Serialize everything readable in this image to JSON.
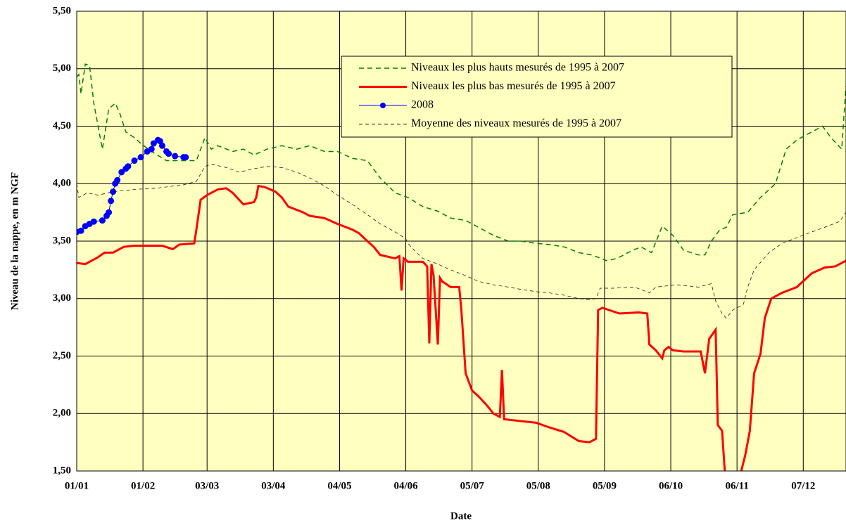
{
  "chart_data": {
    "type": "line",
    "x_label": "Date",
    "y_label": "Niveau de la nappe, en m NGF",
    "xlim": [
      0,
      360
    ],
    "xticks": [
      {
        "value": 0,
        "label": "01/01"
      },
      {
        "value": 31,
        "label": "01/02"
      },
      {
        "value": 61,
        "label": "03/03"
      },
      {
        "value": 92,
        "label": "03/04"
      },
      {
        "value": 123,
        "label": "04/05"
      },
      {
        "value": 154,
        "label": "04/06"
      },
      {
        "value": 185,
        "label": "05/07"
      },
      {
        "value": 216,
        "label": "05/08"
      },
      {
        "value": 247,
        "label": "05/09"
      },
      {
        "value": 278,
        "label": "06/10"
      },
      {
        "value": 309,
        "label": "06/11"
      },
      {
        "value": 340,
        "label": "07/12"
      }
    ],
    "ylim": [
      1.5,
      5.5
    ],
    "yticks": [
      {
        "value": 1.5,
        "label": "1,50"
      },
      {
        "value": 2,
        "label": "2,00"
      },
      {
        "value": 2.5,
        "label": "2,50"
      },
      {
        "value": 3,
        "label": "3,00"
      },
      {
        "value": 3.5,
        "label": "3,50"
      },
      {
        "value": 4,
        "label": "4,00"
      },
      {
        "value": 4.5,
        "label": "4,50"
      },
      {
        "value": 5,
        "label": "5,00"
      },
      {
        "value": 5.5,
        "label": "5,50"
      }
    ],
    "grid": true,
    "legend": "upper right",
    "series": [
      {
        "name": "Niveaux les plus hauts mesurés de 1995 à 2007",
        "color": "#008000",
        "style": "dashed",
        "x": [
          0,
          1,
          2,
          4,
          6,
          8,
          12,
          15,
          18,
          20,
          23,
          27,
          30,
          35,
          42,
          50,
          56,
          60,
          63,
          66,
          73,
          78,
          83,
          89,
          96,
          103,
          109,
          116,
          122,
          129,
          136,
          142,
          149,
          155,
          162,
          169,
          175,
          182,
          188,
          195,
          202,
          208,
          215,
          221,
          228,
          235,
          241,
          248,
          253,
          258,
          264,
          269,
          274,
          279,
          284,
          291,
          294,
          297,
          301,
          304,
          307,
          314,
          320,
          327,
          332,
          337,
          344,
          349,
          353,
          358,
          360
        ],
        "values": [
          4.93,
          4.95,
          4.78,
          5.04,
          5.03,
          4.7,
          4.3,
          4.65,
          4.7,
          4.62,
          4.45,
          4.4,
          4.35,
          4.28,
          4.2,
          4.2,
          4.2,
          4.4,
          4.3,
          4.33,
          4.28,
          4.3,
          4.25,
          4.3,
          4.33,
          4.3,
          4.33,
          4.28,
          4.28,
          4.22,
          4.2,
          4.05,
          3.92,
          3.88,
          3.8,
          3.76,
          3.7,
          3.68,
          3.62,
          3.55,
          3.5,
          3.5,
          3.48,
          3.47,
          3.45,
          3.4,
          3.38,
          3.33,
          3.35,
          3.4,
          3.45,
          3.4,
          3.63,
          3.55,
          3.42,
          3.38,
          3.38,
          3.5,
          3.6,
          3.62,
          3.73,
          3.75,
          3.88,
          4.0,
          4.3,
          4.38,
          4.45,
          4.5,
          4.4,
          4.3,
          4.85
        ]
      },
      {
        "name": "Niveaux les plus bas mesurés de 1995 à 2007",
        "color": "#ff0000",
        "style": "thick",
        "x": [
          0,
          4,
          7,
          10,
          13,
          17,
          22,
          27,
          33,
          40,
          45,
          48,
          55,
          56,
          58,
          61,
          66,
          70,
          73,
          78,
          83,
          84,
          85,
          88,
          93,
          96,
          99,
          106,
          109,
          116,
          122,
          129,
          132,
          136,
          139,
          142,
          149,
          151,
          152,
          153,
          155,
          162,
          164,
          165,
          166,
          167,
          169,
          170,
          171,
          175,
          179,
          180,
          182,
          185,
          188,
          192,
          195,
          198,
          199,
          200,
          205,
          215,
          221,
          228,
          235,
          240,
          243,
          244,
          246,
          254,
          263,
          267,
          268,
          271,
          274,
          275,
          277,
          279,
          284,
          292,
          294,
          296,
          299,
          300,
          302,
          304,
          310,
          311,
          313,
          315,
          317,
          320,
          322,
          325,
          330,
          337,
          344,
          350,
          355,
          360
        ],
        "values": [
          3.31,
          3.3,
          3.33,
          3.36,
          3.4,
          3.4,
          3.45,
          3.46,
          3.46,
          3.46,
          3.43,
          3.47,
          3.48,
          3.6,
          3.86,
          3.9,
          3.95,
          3.96,
          3.92,
          3.82,
          3.84,
          3.88,
          3.98,
          3.97,
          3.93,
          3.88,
          3.8,
          3.75,
          3.72,
          3.7,
          3.65,
          3.6,
          3.57,
          3.5,
          3.45,
          3.38,
          3.35,
          3.37,
          3.07,
          3.35,
          3.32,
          3.32,
          3.28,
          2.61,
          3.3,
          3.2,
          2.6,
          3.18,
          3.15,
          3.1,
          3.1,
          2.9,
          2.35,
          2.2,
          2.15,
          2.07,
          2.0,
          1.97,
          2.38,
          1.95,
          1.94,
          1.92,
          1.88,
          1.84,
          1.76,
          1.75,
          1.78,
          2.9,
          2.92,
          2.87,
          2.88,
          2.87,
          2.6,
          2.55,
          2.48,
          2.55,
          2.58,
          2.55,
          2.54,
          2.54,
          2.35,
          2.65,
          2.73,
          1.9,
          1.85,
          1.3,
          1.3,
          1.5,
          1.65,
          1.85,
          2.35,
          2.52,
          2.83,
          3.0,
          3.05,
          3.1,
          3.22,
          3.27,
          3.28,
          3.33
        ]
      },
      {
        "name": "2008",
        "color": "#0000ff",
        "style": "marker",
        "x": [
          0,
          2,
          4,
          6,
          8,
          12,
          14,
          15,
          16,
          17,
          18,
          19,
          21,
          23,
          24,
          27,
          30,
          33,
          35,
          36,
          38,
          39,
          40,
          42,
          43,
          46,
          50,
          51
        ],
        "values": [
          3.58,
          3.59,
          3.63,
          3.65,
          3.67,
          3.68,
          3.72,
          3.75,
          3.85,
          3.93,
          4.0,
          4.03,
          4.1,
          4.13,
          4.15,
          4.2,
          4.23,
          4.28,
          4.3,
          4.35,
          4.38,
          4.37,
          4.33,
          4.28,
          4.26,
          4.24,
          4.23,
          4.23
        ]
      },
      {
        "name": "Moyenne des niveaux mesurés de 1995 à 2007",
        "color": "#000000",
        "style": "thin-dashed",
        "x": [
          0,
          1,
          5,
          10,
          17,
          27,
          37,
          50,
          56,
          60,
          63,
          70,
          76,
          83,
          89,
          96,
          103,
          109,
          116,
          122,
          129,
          136,
          142,
          149,
          154,
          155,
          159,
          162,
          169,
          175,
          182,
          188,
          195,
          202,
          208,
          215,
          221,
          228,
          235,
          240,
          243,
          245,
          251,
          261,
          268,
          271,
          281,
          291,
          297,
          299,
          302,
          304,
          307,
          312,
          314,
          317,
          324,
          330,
          337,
          344,
          350,
          357,
          360
        ],
        "values": [
          4.0,
          3.88,
          3.92,
          3.9,
          3.93,
          3.95,
          3.96,
          3.99,
          4.02,
          4.15,
          4.17,
          4.14,
          4.1,
          4.13,
          4.15,
          4.14,
          4.1,
          4.05,
          3.98,
          3.9,
          3.82,
          3.73,
          3.65,
          3.58,
          3.52,
          3.48,
          3.4,
          3.35,
          3.3,
          3.25,
          3.2,
          3.15,
          3.12,
          3.1,
          3.08,
          3.06,
          3.05,
          3.03,
          3.0,
          2.99,
          3.0,
          3.09,
          3.09,
          3.1,
          3.05,
          3.1,
          3.12,
          3.1,
          3.13,
          2.98,
          2.87,
          2.83,
          2.9,
          2.95,
          3.1,
          3.25,
          3.4,
          3.48,
          3.53,
          3.58,
          3.62,
          3.67,
          3.75
        ]
      }
    ]
  }
}
